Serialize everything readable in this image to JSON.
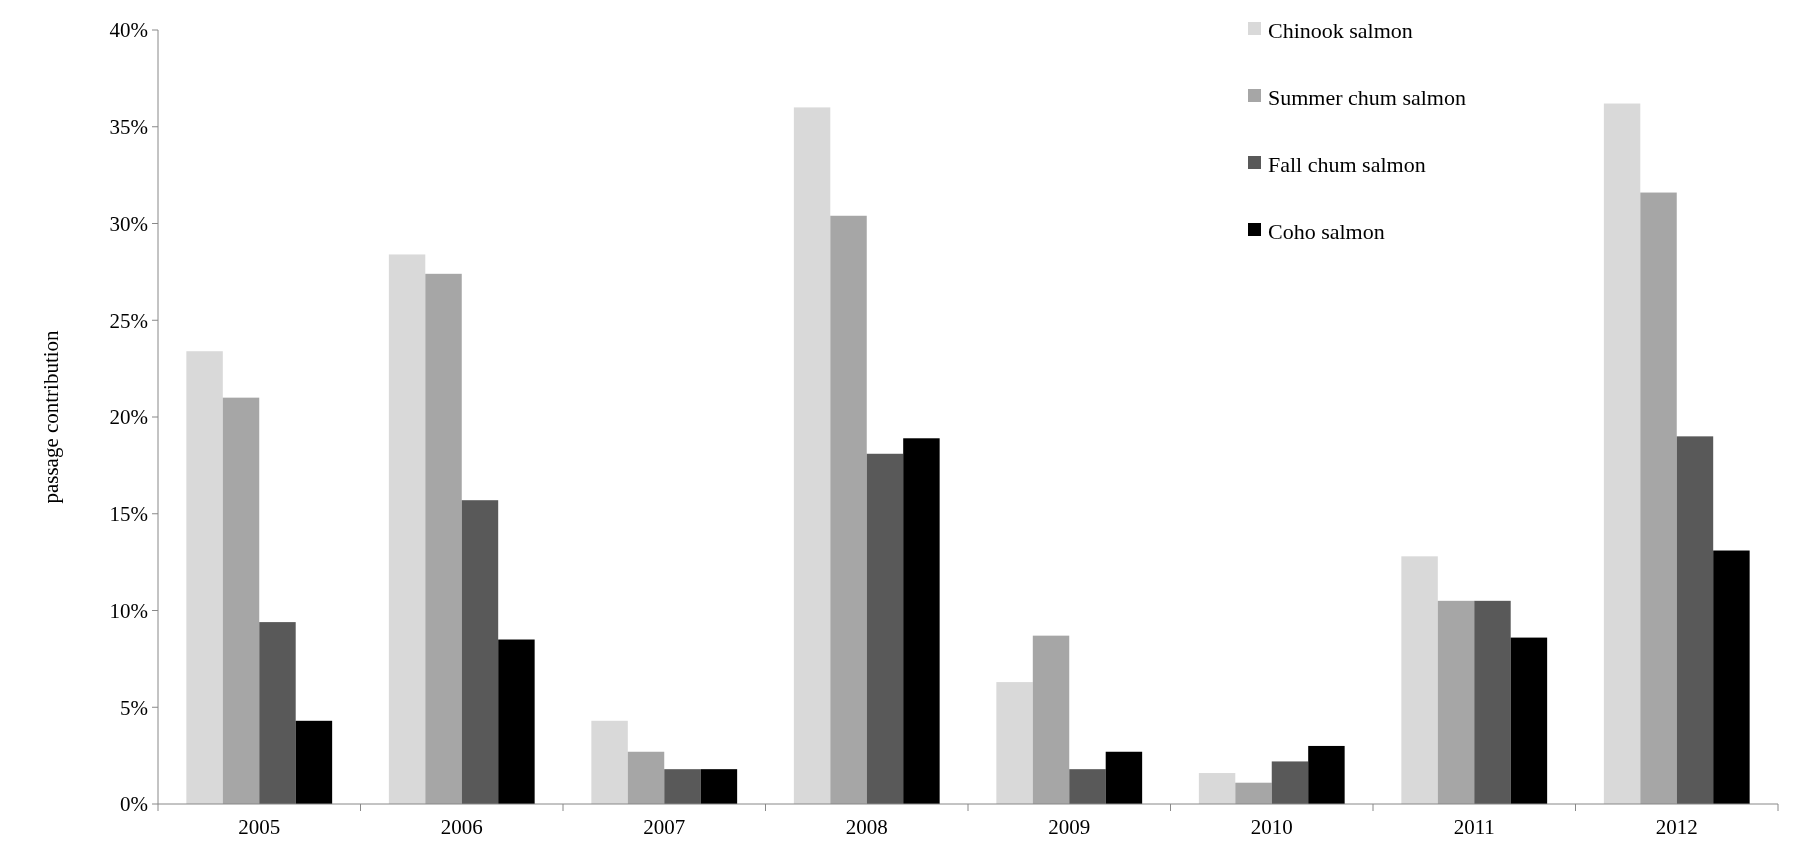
{
  "chart_data": {
    "type": "bar",
    "ylabel": "passage contribution",
    "categories": [
      "2005",
      "2006",
      "2007",
      "2008",
      "2009",
      "2010",
      "2011",
      "2012"
    ],
    "series": [
      {
        "name": "Chinook salmon",
        "color": "#d9d9d9",
        "values": [
          23.4,
          28.4,
          4.3,
          36.0,
          6.3,
          1.6,
          12.8,
          36.2
        ]
      },
      {
        "name": "Summer chum salmon",
        "color": "#a6a6a6",
        "values": [
          21.0,
          27.4,
          2.7,
          30.4,
          8.7,
          1.1,
          10.5,
          31.6
        ]
      },
      {
        "name": "Fall chum salmon",
        "color": "#595959",
        "values": [
          9.4,
          15.7,
          1.8,
          18.1,
          1.8,
          2.2,
          10.5,
          19.0
        ]
      },
      {
        "name": "Coho salmon",
        "color": "#000000",
        "values": [
          4.3,
          8.5,
          1.8,
          18.9,
          2.7,
          3.0,
          8.6,
          13.1
        ]
      }
    ],
    "ylim": [
      0,
      40
    ],
    "yticks": [
      {
        "value": 0,
        "label": "0%"
      },
      {
        "value": 5,
        "label": "5%"
      },
      {
        "value": 10,
        "label": "10%"
      },
      {
        "value": 15,
        "label": "15%"
      },
      {
        "value": 20,
        "label": "20%"
      },
      {
        "value": 25,
        "label": "25%"
      },
      {
        "value": 30,
        "label": "30%"
      },
      {
        "value": 35,
        "label": "35%"
      },
      {
        "value": 40,
        "label": "40%"
      }
    ],
    "grid": false,
    "legend": "top right"
  }
}
